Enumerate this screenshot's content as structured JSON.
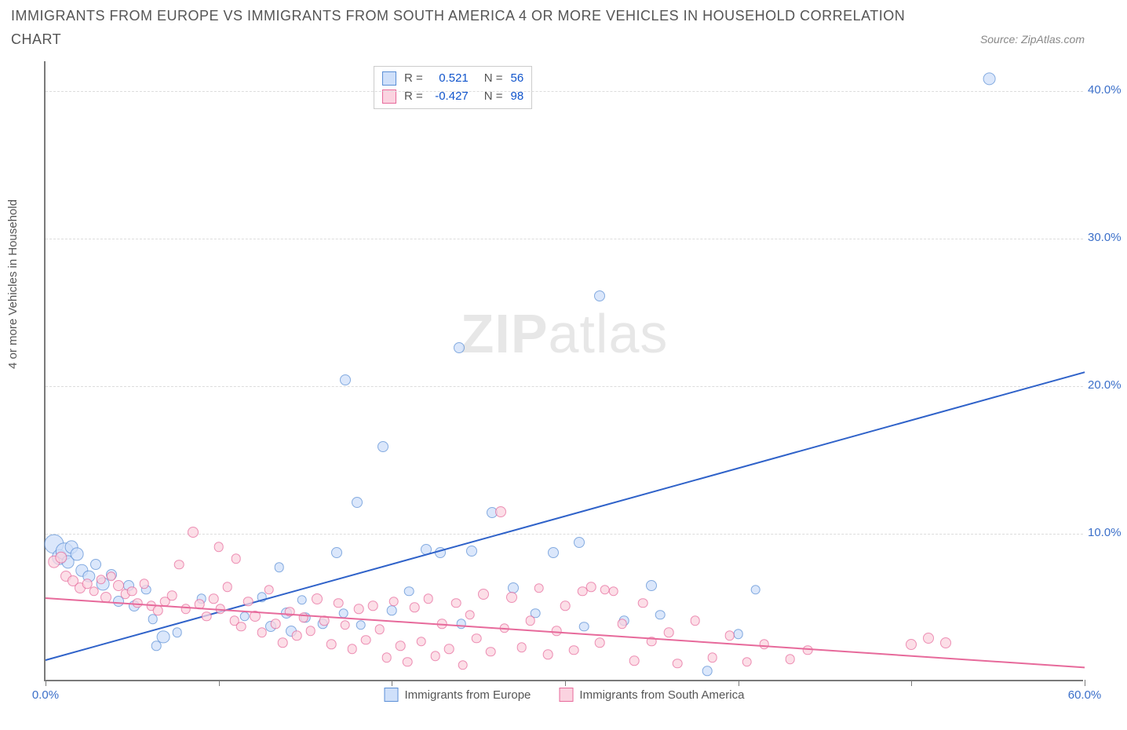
{
  "title_line1": "IMMIGRANTS FROM EUROPE VS IMMIGRANTS FROM SOUTH AMERICA 4 OR MORE VEHICLES IN HOUSEHOLD CORRELATION",
  "title_line2": "CHART",
  "source_label": "Source: ZipAtlas.com",
  "ylabel": "4 or more Vehicles in Household",
  "watermark_a": "ZIP",
  "watermark_b": "atlas",
  "chart": {
    "type": "scatter",
    "background_color": "#ffffff",
    "axis_color": "#7a7a7a",
    "grid_color": "#dcdcdc",
    "tick_label_color": "#3b6fc9",
    "xlim": [
      0,
      60
    ],
    "ylim": [
      0,
      42
    ],
    "yticks": [
      {
        "v": 10,
        "label": "10.0%"
      },
      {
        "v": 20,
        "label": "20.0%"
      },
      {
        "v": 30,
        "label": "30.0%"
      },
      {
        "v": 40,
        "label": "40.0%"
      }
    ],
    "xticks_major": [
      0,
      10,
      20,
      30,
      40,
      50,
      60
    ],
    "xtick_labels": [
      {
        "v": 0,
        "label": "0.0%"
      },
      {
        "v": 60,
        "label": "60.0%"
      }
    ],
    "series": [
      {
        "id": "europe",
        "label": "Immigrants from Europe",
        "point_fill": "#cfe0fa",
        "point_stroke": "#5b8fd6",
        "point_opacity": 0.75,
        "trend_color": "#2f62c9",
        "trend": {
          "x1": 0,
          "y1": 1.5,
          "x2": 60,
          "y2": 21
        },
        "r_label": "R =",
        "r_value": "0.521",
        "n_label": "N =",
        "n_value": "56",
        "points": [
          {
            "x": 0.5,
            "y": 9.2,
            "s": 18
          },
          {
            "x": 0.8,
            "y": 8.3,
            "s": 14
          },
          {
            "x": 1.1,
            "y": 8.7,
            "s": 16
          },
          {
            "x": 1.3,
            "y": 8.0,
            "s": 12
          },
          {
            "x": 1.5,
            "y": 9.0,
            "s": 12
          },
          {
            "x": 1.8,
            "y": 8.5,
            "s": 12
          },
          {
            "x": 2.1,
            "y": 7.4,
            "s": 11
          },
          {
            "x": 2.5,
            "y": 7.0,
            "s": 11
          },
          {
            "x": 2.9,
            "y": 7.8,
            "s": 10
          },
          {
            "x": 3.3,
            "y": 6.5,
            "s": 12
          },
          {
            "x": 3.8,
            "y": 7.1,
            "s": 10
          },
          {
            "x": 4.2,
            "y": 5.3,
            "s": 10
          },
          {
            "x": 4.8,
            "y": 6.4,
            "s": 10
          },
          {
            "x": 5.1,
            "y": 5.0,
            "s": 10
          },
          {
            "x": 5.8,
            "y": 6.1,
            "s": 9
          },
          {
            "x": 6.2,
            "y": 4.1,
            "s": 9
          },
          {
            "x": 6.8,
            "y": 2.9,
            "s": 12
          },
          {
            "x": 7.6,
            "y": 3.2,
            "s": 9
          },
          {
            "x": 6.4,
            "y": 2.3,
            "s": 9
          },
          {
            "x": 9.0,
            "y": 5.5,
            "s": 9
          },
          {
            "x": 11.5,
            "y": 4.3,
            "s": 9
          },
          {
            "x": 12.5,
            "y": 5.6,
            "s": 9
          },
          {
            "x": 13.0,
            "y": 3.6,
            "s": 10
          },
          {
            "x": 13.9,
            "y": 4.5,
            "s": 10
          },
          {
            "x": 14.2,
            "y": 3.3,
            "s": 10
          },
          {
            "x": 15.0,
            "y": 4.2,
            "s": 9
          },
          {
            "x": 16.0,
            "y": 3.8,
            "s": 9
          },
          {
            "x": 16.8,
            "y": 8.6,
            "s": 10
          },
          {
            "x": 17.3,
            "y": 20.3,
            "s": 10
          },
          {
            "x": 17.2,
            "y": 4.5,
            "s": 9
          },
          {
            "x": 18.0,
            "y": 12.0,
            "s": 10
          },
          {
            "x": 18.2,
            "y": 3.7,
            "s": 9
          },
          {
            "x": 19.5,
            "y": 15.8,
            "s": 10
          },
          {
            "x": 20.0,
            "y": 4.7,
            "s": 9
          },
          {
            "x": 21.0,
            "y": 6.0,
            "s": 9
          },
          {
            "x": 22.0,
            "y": 8.8,
            "s": 10
          },
          {
            "x": 22.8,
            "y": 8.6,
            "s": 10
          },
          {
            "x": 23.9,
            "y": 22.5,
            "s": 10
          },
          {
            "x": 24.0,
            "y": 3.8,
            "s": 9
          },
          {
            "x": 24.6,
            "y": 8.7,
            "s": 10
          },
          {
            "x": 25.8,
            "y": 11.3,
            "s": 10
          },
          {
            "x": 27.0,
            "y": 6.2,
            "s": 10
          },
          {
            "x": 28.3,
            "y": 4.5,
            "s": 9
          },
          {
            "x": 29.3,
            "y": 8.6,
            "s": 10
          },
          {
            "x": 30.8,
            "y": 9.3,
            "s": 10
          },
          {
            "x": 31.1,
            "y": 3.6,
            "s": 9
          },
          {
            "x": 32.0,
            "y": 26.0,
            "s": 10
          },
          {
            "x": 33.4,
            "y": 4.0,
            "s": 9
          },
          {
            "x": 35.0,
            "y": 6.4,
            "s": 10
          },
          {
            "x": 35.5,
            "y": 4.4,
            "s": 9
          },
          {
            "x": 38.2,
            "y": 0.6,
            "s": 9
          },
          {
            "x": 40.0,
            "y": 3.1,
            "s": 9
          },
          {
            "x": 41.0,
            "y": 6.1,
            "s": 9
          },
          {
            "x": 54.5,
            "y": 40.7,
            "s": 12
          },
          {
            "x": 13.5,
            "y": 7.6,
            "s": 9
          },
          {
            "x": 14.8,
            "y": 5.4,
            "s": 9
          }
        ]
      },
      {
        "id": "south_america",
        "label": "Immigrants from South America",
        "point_fill": "#fbd3e0",
        "point_stroke": "#e76a9b",
        "point_opacity": 0.75,
        "trend_color": "#e76a9b",
        "trend": {
          "x1": 0,
          "y1": 5.7,
          "x2": 60,
          "y2": 1.0
        },
        "r_label": "R =",
        "r_value": "-0.427",
        "n_label": "N =",
        "n_value": "98",
        "points": [
          {
            "x": 0.5,
            "y": 8.0,
            "s": 11
          },
          {
            "x": 0.9,
            "y": 8.3,
            "s": 11
          },
          {
            "x": 1.2,
            "y": 7.0,
            "s": 10
          },
          {
            "x": 1.6,
            "y": 6.7,
            "s": 10
          },
          {
            "x": 2.0,
            "y": 6.2,
            "s": 10
          },
          {
            "x": 2.4,
            "y": 6.5,
            "s": 9
          },
          {
            "x": 2.8,
            "y": 6.0,
            "s": 9
          },
          {
            "x": 3.2,
            "y": 6.8,
            "s": 9
          },
          {
            "x": 3.5,
            "y": 5.6,
            "s": 10
          },
          {
            "x": 3.8,
            "y": 7.0,
            "s": 9
          },
          {
            "x": 4.2,
            "y": 6.4,
            "s": 10
          },
          {
            "x": 4.6,
            "y": 5.8,
            "s": 9
          },
          {
            "x": 5.0,
            "y": 6.0,
            "s": 9
          },
          {
            "x": 5.3,
            "y": 5.2,
            "s": 9
          },
          {
            "x": 5.7,
            "y": 6.5,
            "s": 9
          },
          {
            "x": 6.1,
            "y": 5.0,
            "s": 9
          },
          {
            "x": 6.5,
            "y": 4.7,
            "s": 9
          },
          {
            "x": 6.9,
            "y": 5.3,
            "s": 9
          },
          {
            "x": 7.3,
            "y": 5.7,
            "s": 9
          },
          {
            "x": 7.7,
            "y": 7.8,
            "s": 9
          },
          {
            "x": 8.1,
            "y": 4.8,
            "s": 9
          },
          {
            "x": 8.5,
            "y": 10.0,
            "s": 10
          },
          {
            "x": 8.9,
            "y": 5.1,
            "s": 9
          },
          {
            "x": 9.3,
            "y": 4.3,
            "s": 9
          },
          {
            "x": 9.7,
            "y": 5.5,
            "s": 9
          },
          {
            "x": 10.1,
            "y": 4.8,
            "s": 9
          },
          {
            "x": 10.5,
            "y": 6.3,
            "s": 9
          },
          {
            "x": 10.9,
            "y": 4.0,
            "s": 9
          },
          {
            "x": 11.3,
            "y": 3.6,
            "s": 9
          },
          {
            "x": 11.7,
            "y": 5.3,
            "s": 9
          },
          {
            "x": 12.1,
            "y": 4.3,
            "s": 10
          },
          {
            "x": 12.5,
            "y": 3.2,
            "s": 9
          },
          {
            "x": 12.9,
            "y": 6.1,
            "s": 9
          },
          {
            "x": 13.3,
            "y": 3.8,
            "s": 9
          },
          {
            "x": 13.7,
            "y": 2.5,
            "s": 9
          },
          {
            "x": 14.1,
            "y": 4.6,
            "s": 9
          },
          {
            "x": 14.5,
            "y": 3.0,
            "s": 9
          },
          {
            "x": 14.9,
            "y": 4.2,
            "s": 9
          },
          {
            "x": 15.3,
            "y": 3.3,
            "s": 9
          },
          {
            "x": 15.7,
            "y": 5.5,
            "s": 10
          },
          {
            "x": 16.1,
            "y": 4.0,
            "s": 9
          },
          {
            "x": 16.5,
            "y": 2.4,
            "s": 9
          },
          {
            "x": 16.9,
            "y": 5.2,
            "s": 9
          },
          {
            "x": 17.3,
            "y": 3.7,
            "s": 9
          },
          {
            "x": 17.7,
            "y": 2.1,
            "s": 9
          },
          {
            "x": 18.1,
            "y": 4.8,
            "s": 9
          },
          {
            "x": 18.5,
            "y": 2.7,
            "s": 9
          },
          {
            "x": 18.9,
            "y": 5.0,
            "s": 9
          },
          {
            "x": 19.3,
            "y": 3.4,
            "s": 9
          },
          {
            "x": 19.7,
            "y": 1.5,
            "s": 9
          },
          {
            "x": 20.1,
            "y": 5.3,
            "s": 9
          },
          {
            "x": 20.5,
            "y": 2.3,
            "s": 9
          },
          {
            "x": 20.9,
            "y": 1.2,
            "s": 9
          },
          {
            "x": 21.3,
            "y": 4.9,
            "s": 9
          },
          {
            "x": 21.7,
            "y": 2.6,
            "s": 9
          },
          {
            "x": 22.1,
            "y": 5.5,
            "s": 9
          },
          {
            "x": 22.5,
            "y": 1.6,
            "s": 9
          },
          {
            "x": 22.9,
            "y": 3.8,
            "s": 9
          },
          {
            "x": 23.3,
            "y": 2.1,
            "s": 9
          },
          {
            "x": 23.7,
            "y": 5.2,
            "s": 9
          },
          {
            "x": 24.1,
            "y": 1.0,
            "s": 9
          },
          {
            "x": 24.5,
            "y": 4.4,
            "s": 9
          },
          {
            "x": 24.9,
            "y": 2.8,
            "s": 9
          },
          {
            "x": 25.3,
            "y": 5.8,
            "s": 10
          },
          {
            "x": 25.7,
            "y": 1.9,
            "s": 9
          },
          {
            "x": 26.3,
            "y": 11.4,
            "s": 10
          },
          {
            "x": 26.5,
            "y": 3.5,
            "s": 9
          },
          {
            "x": 26.9,
            "y": 5.6,
            "s": 10
          },
          {
            "x": 27.5,
            "y": 2.2,
            "s": 9
          },
          {
            "x": 28.0,
            "y": 4.0,
            "s": 9
          },
          {
            "x": 28.5,
            "y": 6.2,
            "s": 9
          },
          {
            "x": 29.0,
            "y": 1.7,
            "s": 9
          },
          {
            "x": 29.5,
            "y": 3.3,
            "s": 9
          },
          {
            "x": 30.0,
            "y": 5.0,
            "s": 9
          },
          {
            "x": 30.5,
            "y": 2.0,
            "s": 9
          },
          {
            "x": 31.0,
            "y": 6.0,
            "s": 9
          },
          {
            "x": 31.5,
            "y": 6.3,
            "s": 9
          },
          {
            "x": 32.0,
            "y": 2.5,
            "s": 9
          },
          {
            "x": 32.3,
            "y": 6.1,
            "s": 9
          },
          {
            "x": 32.8,
            "y": 6.0,
            "s": 9
          },
          {
            "x": 33.3,
            "y": 3.8,
            "s": 9
          },
          {
            "x": 34.0,
            "y": 1.3,
            "s": 9
          },
          {
            "x": 34.5,
            "y": 5.2,
            "s": 9
          },
          {
            "x": 35.0,
            "y": 2.6,
            "s": 9
          },
          {
            "x": 36.0,
            "y": 3.2,
            "s": 9
          },
          {
            "x": 36.5,
            "y": 1.1,
            "s": 9
          },
          {
            "x": 37.5,
            "y": 4.0,
            "s": 9
          },
          {
            "x": 38.5,
            "y": 1.5,
            "s": 9
          },
          {
            "x": 39.5,
            "y": 3.0,
            "s": 9
          },
          {
            "x": 40.5,
            "y": 1.2,
            "s": 9
          },
          {
            "x": 41.5,
            "y": 2.4,
            "s": 9
          },
          {
            "x": 43.0,
            "y": 1.4,
            "s": 9
          },
          {
            "x": 44.0,
            "y": 2.0,
            "s": 9
          },
          {
            "x": 50.0,
            "y": 2.4,
            "s": 10
          },
          {
            "x": 51.0,
            "y": 2.8,
            "s": 10
          },
          {
            "x": 52.0,
            "y": 2.5,
            "s": 10
          },
          {
            "x": 10.0,
            "y": 9.0,
            "s": 9
          },
          {
            "x": 11.0,
            "y": 8.2,
            "s": 9
          }
        ]
      }
    ]
  },
  "bottom_legend": {
    "europe_label": "Immigrants from Europe",
    "sa_label": "Immigrants from South America"
  }
}
